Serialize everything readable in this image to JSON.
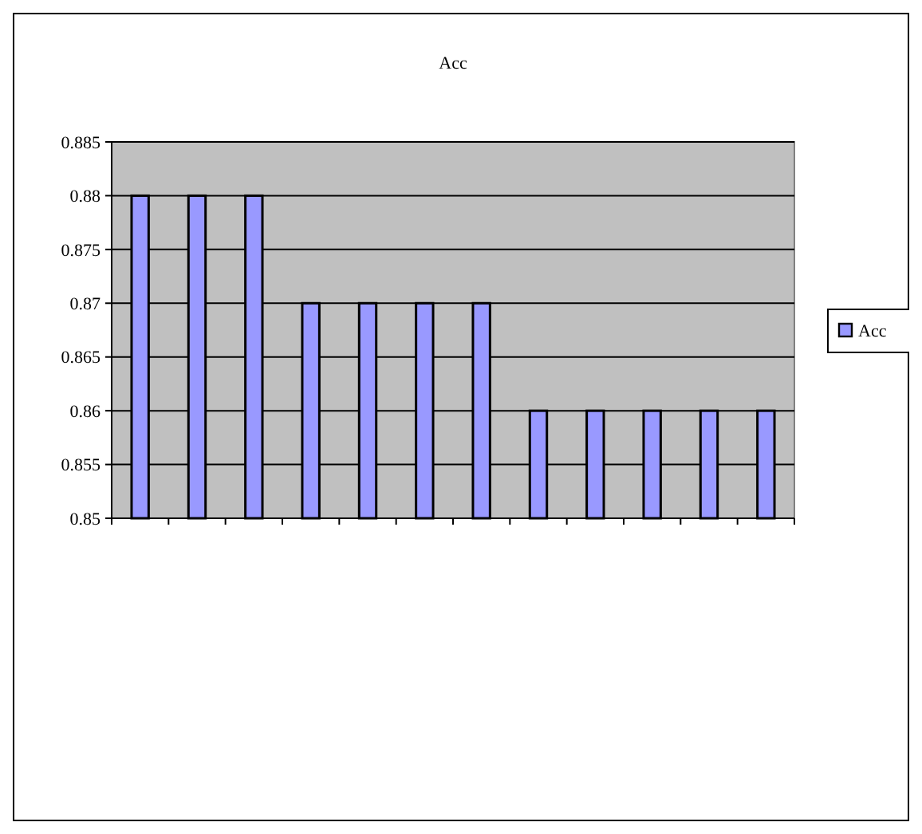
{
  "chart_data": {
    "type": "bar",
    "title": "Acc",
    "categories": [
      null,
      null,
      null,
      null,
      null,
      null,
      null,
      null,
      null,
      null,
      null,
      null
    ],
    "series": [
      {
        "name": "Acc",
        "color": "#9999ff",
        "values": [
          0.88,
          0.88,
          0.88,
          0.87,
          0.87,
          0.87,
          0.87,
          0.86,
          0.86,
          0.86,
          0.86,
          0.86
        ]
      }
    ],
    "ylim": [
      0.85,
      0.885
    ],
    "yticks": [
      0.85,
      0.855,
      0.86,
      0.865,
      0.87,
      0.875,
      0.88,
      0.885
    ],
    "grid": "y",
    "legend": "right"
  }
}
